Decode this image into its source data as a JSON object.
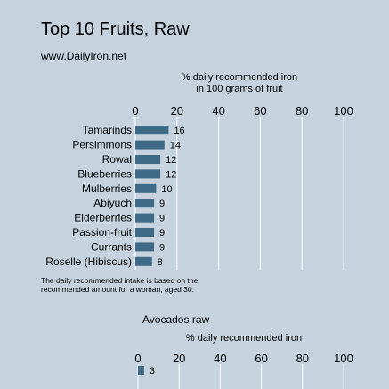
{
  "header": {
    "title": "Top 10 Fruits, Raw",
    "subtitle": "www.DailyIron.net"
  },
  "footnote": {
    "line1": "The daily recommended intake is based on the",
    "line2": "recommended amount for a woman, aged 30."
  },
  "colors": {
    "background": "#c6d3de",
    "bar": "#3f6a86",
    "grid": "#ffffff"
  },
  "chart_data": [
    {
      "type": "bar",
      "orientation": "horizontal",
      "title": "",
      "axis_title_line1": "% daily recommended iron",
      "axis_title_line2": "in 100 grams of fruit",
      "xlim": [
        0,
        100
      ],
      "ticks": [
        0,
        20,
        40,
        60,
        80,
        100
      ],
      "grid": true,
      "categories": [
        "Tamarinds",
        "Persimmons",
        "Rowal",
        "Blueberries",
        "Mulberries",
        "Abiyuch",
        "Elderberries",
        "Passion-fruit",
        "Currants",
        "Roselle (Hibiscus)"
      ],
      "values": [
        16,
        14,
        12,
        12,
        10,
        9,
        9,
        9,
        9,
        8
      ]
    },
    {
      "type": "bar",
      "orientation": "horizontal",
      "title": "Avocados raw",
      "axis_title_line1": "% daily recommended iron",
      "xlim": [
        0,
        100
      ],
      "ticks": [
        0,
        20,
        40,
        60,
        80,
        100
      ],
      "grid": true,
      "categories": [
        ""
      ],
      "values": [
        3
      ]
    }
  ]
}
